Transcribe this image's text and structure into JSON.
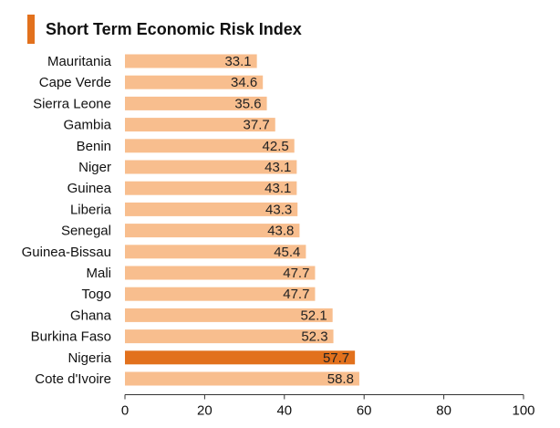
{
  "chart_data": {
    "type": "bar",
    "orientation": "horizontal",
    "title": "Short Term Economic Risk Index",
    "categories": [
      "Mauritania",
      "Cape Verde",
      "Sierra Leone",
      "Gambia",
      "Benin",
      "Niger",
      "Guinea",
      "Liberia",
      "Senegal",
      "Guinea-Bissau",
      "Mali",
      "Togo",
      "Ghana",
      "Burkina Faso",
      "Nigeria",
      "Cote d'Ivoire"
    ],
    "values": [
      33.1,
      34.6,
      35.6,
      37.7,
      42.5,
      43.1,
      43.1,
      43.3,
      43.8,
      45.4,
      47.7,
      47.7,
      52.1,
      52.3,
      57.7,
      58.8
    ],
    "data_labels": [
      "33.1",
      "34.6",
      "35.6",
      "37.7",
      "42.5",
      "43.1",
      "43.1",
      "43.3",
      "43.8",
      "45.4",
      "47.7",
      "47.7",
      "52.1",
      "52.3",
      "57.7",
      "58.8"
    ],
    "highlight_category": "Nigeria",
    "xlim": [
      0,
      100
    ],
    "xticks": [
      0,
      20,
      40,
      60,
      80,
      100
    ],
    "grid": false,
    "legend": "none",
    "colors": {
      "bar": "#F8BE8E",
      "highlight": "#E2711D",
      "accent": "#E2711D"
    }
  }
}
